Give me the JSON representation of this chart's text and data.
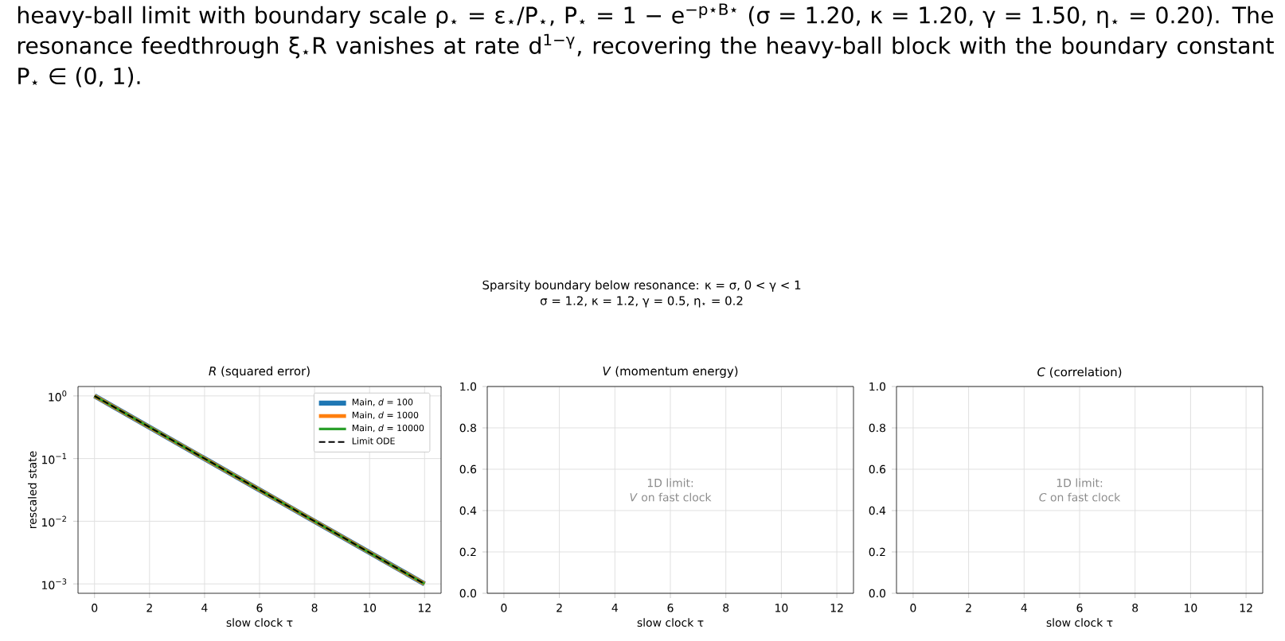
{
  "chart_data": [
    {
      "type": "other",
      "title": "Sparsity boundary below resonance: κ = σ, 0 < γ < 1",
      "subtitle": "σ = 1.2, κ = 1.2, γ = 0.5, η$_{⋆}$ = 0.2",
      "annotations": [
        "heavy-ball limit with boundary scale ρ$_{⋆}$ = ε$_{⋆}$/P$_{⋆}$, P$_{⋆}$ = 1 − e$^{−p⋆B⋆}$ (σ = 1.20, κ = 1.20, γ = 1.50, η$_{⋆}$ = 0.20). The resonance feedthrough ξ$_{⋆}$R vanishes at rate d$^{1−γ}$, recovering the heavy-ball block with the boundary constant P$_{⋆}$ ∈ (0, 1)."
      ]
    },
    {
      "type": "line",
      "title": "*R* (squared error)",
      "xlabel": "slow clock τ",
      "ylabel": "rescaled state",
      "log": "y",
      "grid": true,
      "legend": "top right",
      "x": [
        0,
        2,
        4,
        6,
        8,
        10,
        12
      ],
      "series": [
        {
          "name": "Main, *d* = 100",
          "color": "#1f77b4",
          "values": [
            1,
            0.3162,
            0.1,
            0.03162,
            0.01,
            0.003162,
            0.001
          ]
        },
        {
          "name": "Main, *d* = 1000",
          "color": "#ff7f0e",
          "values": [
            1,
            0.3162,
            0.1,
            0.03162,
            0.01,
            0.003162,
            0.001
          ]
        },
        {
          "name": "Main, *d* = 10000",
          "color": "#2ca02c",
          "values": [
            1,
            0.3162,
            0.1,
            0.03162,
            0.01,
            0.003162,
            0.001
          ]
        },
        {
          "name": "Limit ODE",
          "color": "#000000",
          "line_style": "dashed",
          "values": [
            1,
            0.3162,
            0.1,
            0.03162,
            0.01,
            0.003162,
            0.001
          ]
        }
      ],
      "xlim": [
        -0.6,
        12.6
      ],
      "xticks": [
        0,
        2,
        4,
        6,
        8,
        10,
        12
      ],
      "ylim": [
        0.000708,
        1.413
      ],
      "yticks": [
        {
          "value": 1,
          "label": "10$^{0}$"
        },
        {
          "value": 0.1,
          "label": "10$^{−1}$"
        },
        {
          "value": 0.01,
          "label": "10$^{−2}$"
        },
        {
          "value": 0.001,
          "label": "10$^{−3}$"
        }
      ]
    },
    {
      "type": "line",
      "title": "*V* (momentum energy)",
      "xlabel": "slow clock τ",
      "grid": true,
      "annotations": [
        "1D limit:",
        "*V* on fast clock"
      ],
      "xlim": [
        -0.6,
        12.6
      ],
      "xticks": [
        0,
        2,
        4,
        6,
        8,
        10,
        12
      ],
      "ylim": [
        0,
        1
      ],
      "yticks": [
        {
          "value": 0,
          "label": "0.0"
        },
        {
          "value": 0.2,
          "label": "0.2"
        },
        {
          "value": 0.4,
          "label": "0.4"
        },
        {
          "value": 0.6,
          "label": "0.6"
        },
        {
          "value": 0.8,
          "label": "0.8"
        },
        {
          "value": 1,
          "label": "1.0"
        }
      ]
    },
    {
      "type": "line",
      "title": "*C* (correlation)",
      "xlabel": "slow clock τ",
      "grid": true,
      "annotations": [
        "1D limit:",
        "*C* on fast clock"
      ],
      "xlim": [
        -0.6,
        12.6
      ],
      "xticks": [
        0,
        2,
        4,
        6,
        8,
        10,
        12
      ],
      "ylim": [
        0,
        1
      ],
      "yticks": [
        {
          "value": 0,
          "label": "0.0"
        },
        {
          "value": 0.2,
          "label": "0.2"
        },
        {
          "value": 0.4,
          "label": "0.4"
        },
        {
          "value": 0.6,
          "label": "0.6"
        },
        {
          "value": 0.8,
          "label": "0.8"
        },
        {
          "value": 1,
          "label": "1.0"
        }
      ]
    }
  ]
}
